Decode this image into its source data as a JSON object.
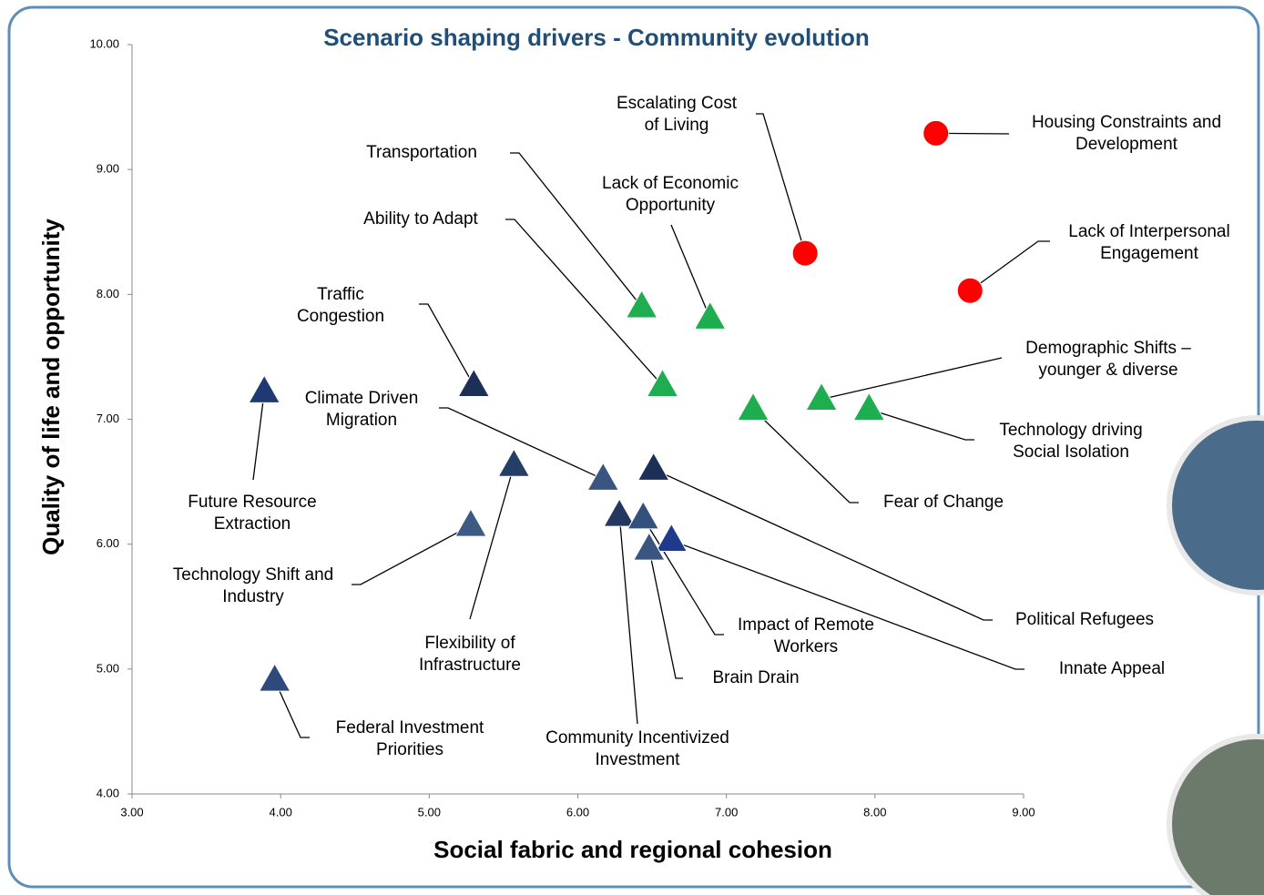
{
  "chart_data": {
    "type": "scatter",
    "title": "Scenario shaping drivers - Community evolution",
    "x_label": "Social fabric and regional cohesion",
    "y_label": "Quality of life and opportunity",
    "xlim": [
      3,
      9
    ],
    "ylim": [
      4,
      10
    ],
    "xticks": [
      {
        "value": 3,
        "label": "3.00"
      },
      {
        "value": 4,
        "label": "4.00"
      },
      {
        "value": 5,
        "label": "5.00"
      },
      {
        "value": 6,
        "label": "6.00"
      },
      {
        "value": 7,
        "label": "7.00"
      },
      {
        "value": 8,
        "label": "8.00"
      },
      {
        "value": 9,
        "label": "9.00"
      }
    ],
    "yticks": [
      {
        "value": 4,
        "label": "4.00"
      },
      {
        "value": 5,
        "label": "5.00"
      },
      {
        "value": 6,
        "label": "6.00"
      },
      {
        "value": 7,
        "label": "7.00"
      },
      {
        "value": 8,
        "label": "8.00"
      },
      {
        "value": 9,
        "label": "9.00"
      },
      {
        "value": 10,
        "label": "10.00"
      }
    ],
    "grid": false,
    "points": [
      {
        "label": [
          "Housing Constraints and",
          "Development"
        ],
        "x": 8.41,
        "y": 9.29,
        "marker": "circle",
        "color": "#ff0000"
      },
      {
        "label": [
          "Escalating Cost",
          "of Living"
        ],
        "x": 7.53,
        "y": 8.33,
        "marker": "circle",
        "color": "#ff0000"
      },
      {
        "label": [
          "Lack of Interpersonal",
          "Engagement"
        ],
        "x": 8.64,
        "y": 8.03,
        "marker": "circle",
        "color": "#ff0000"
      },
      {
        "label": [
          "Transportation"
        ],
        "x": 6.43,
        "y": 7.9,
        "marker": "triangle",
        "color": "#1fae4f"
      },
      {
        "label": [
          "Lack of Economic",
          "Opportunity"
        ],
        "x": 6.89,
        "y": 7.81,
        "marker": "triangle",
        "color": "#1fae4f"
      },
      {
        "label": [
          "Ability to Adapt"
        ],
        "x": 6.57,
        "y": 7.27,
        "marker": "triangle",
        "color": "#1fae4f"
      },
      {
        "label": [
          "Fear of Change"
        ],
        "x": 7.18,
        "y": 7.08,
        "marker": "triangle",
        "color": "#1fae4f"
      },
      {
        "label": [
          "Demographic Shifts –",
          "younger & diverse"
        ],
        "x": 7.64,
        "y": 7.16,
        "marker": "triangle",
        "color": "#1fae4f"
      },
      {
        "label": [
          "Technology driving",
          "Social Isolation"
        ],
        "x": 7.96,
        "y": 7.08,
        "marker": "triangle",
        "color": "#1fae4f"
      },
      {
        "label": [
          "Traffic",
          "Congestion"
        ],
        "x": 5.3,
        "y": 7.27,
        "marker": "triangle",
        "color": "#1b2f57"
      },
      {
        "label": [
          "Future Resource",
          "Extraction"
        ],
        "x": 3.89,
        "y": 7.22,
        "marker": "triangle",
        "color": "#1f3a73"
      },
      {
        "label": [
          "Flexibility of",
          "Infrastructure"
        ],
        "x": 5.57,
        "y": 6.63,
        "marker": "triangle",
        "color": "#253e66"
      },
      {
        "label": [
          "Climate Driven",
          "Migration"
        ],
        "x": 6.17,
        "y": 6.52,
        "marker": "triangle",
        "color": "#3a5580"
      },
      {
        "label": [
          "Political Refugees"
        ],
        "x": 6.51,
        "y": 6.6,
        "marker": "triangle",
        "color": "#1b2f57"
      },
      {
        "label": [
          "Technology Shift and",
          "Industry"
        ],
        "x": 5.28,
        "y": 6.15,
        "marker": "triangle",
        "color": "#3d5a85"
      },
      {
        "label": [
          "Community Incentivized",
          "Investment"
        ],
        "x": 6.28,
        "y": 6.23,
        "marker": "triangle",
        "color": "#23385e"
      },
      {
        "label": [
          "Impact of Remote",
          "Workers"
        ],
        "x": 6.44,
        "y": 6.21,
        "marker": "triangle",
        "color": "#34507c"
      },
      {
        "label": [
          "Innate Appeal"
        ],
        "x": 6.63,
        "y": 6.03,
        "marker": "triangle",
        "color": "#1f3a8a"
      },
      {
        "label": [
          "Brain Drain"
        ],
        "x": 6.48,
        "y": 5.96,
        "marker": "triangle",
        "color": "#3a5580"
      },
      {
        "label": [
          "Federal Investment",
          "Priorities"
        ],
        "x": 3.96,
        "y": 4.91,
        "marker": "triangle",
        "color": "#2e4a7a"
      }
    ]
  }
}
